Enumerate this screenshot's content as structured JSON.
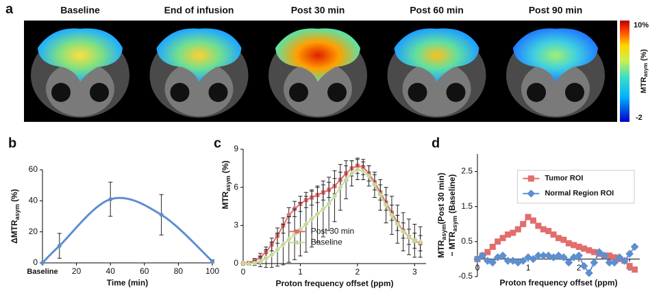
{
  "figure_a": {
    "panel": "a",
    "columns": [
      "Baseline",
      "End of infusion",
      "Post 30 min",
      "Post 60 min",
      "Post 90 min"
    ],
    "colorbar": {
      "max": "10%",
      "min": "-2",
      "title": [
        "MTR",
        "asym",
        " (%)"
      ]
    }
  },
  "chart_data": [
    {
      "type": "line",
      "panel": "b",
      "smooth": true,
      "x": [
        0,
        10,
        40,
        70,
        100
      ],
      "xlim": [
        0,
        100
      ],
      "xticks": [
        {
          "value": 0,
          "label": "Baseline"
        },
        20,
        40,
        60,
        80,
        100
      ],
      "ylim": [
        0,
        60
      ],
      "yticks": [
        0,
        20,
        40,
        60
      ],
      "xlabel": "Time (min)",
      "ylabel": [
        "ΔMTR",
        "asym",
        " (%)"
      ],
      "series": [
        {
          "color": "#5b8fcf",
          "marker": "circle",
          "values": [
            0,
            11,
            41,
            31,
            1
          ],
          "errors": [
            0,
            8,
            11,
            13,
            1
          ]
        }
      ]
    },
    {
      "type": "line",
      "panel": "c",
      "smooth": false,
      "x": [
        0,
        0.1,
        0.2,
        0.3,
        0.4,
        0.5,
        0.6,
        0.7,
        0.8,
        0.9,
        1.0,
        1.1,
        1.2,
        1.3,
        1.4,
        1.5,
        1.6,
        1.7,
        1.8,
        1.9,
        2.0,
        2.1,
        2.2,
        2.3,
        2.4,
        2.5,
        2.6,
        2.7,
        2.8,
        2.9,
        3.0,
        3.1
      ],
      "xlim": [
        0,
        3.2
      ],
      "xticks": [
        0,
        1,
        2,
        3
      ],
      "ylim": [
        0,
        9
      ],
      "yticks": [
        0,
        3,
        6,
        9
      ],
      "xlabel": "Proton frequency offset (ppm)",
      "ylabel": [
        "MTR",
        "asym",
        " (%)"
      ],
      "legend": "lower center",
      "series": [
        {
          "name": "Post 30 min",
          "color": "#e26d6d",
          "marker": "square",
          "values": [
            0,
            0.05,
            0.2,
            0.5,
            0.9,
            1.5,
            2.2,
            3.0,
            3.8,
            4.3,
            4.7,
            5.0,
            5.2,
            5.4,
            5.6,
            5.8,
            6.1,
            6.6,
            7.1,
            7.5,
            7.7,
            7.6,
            7.1,
            6.4,
            5.6,
            4.8,
            4.0,
            3.2,
            2.6,
            2.1,
            1.8,
            1.6
          ],
          "errors": [
            0,
            0.1,
            0.2,
            0.3,
            0.4,
            0.5,
            0.6,
            0.6,
            0.6,
            0.6,
            0.6,
            0.6,
            0.6,
            0.6,
            0.6,
            0.6,
            0.6,
            0.6,
            0.6,
            0.6,
            0.6,
            0.6,
            0.6,
            0.6,
            0.6,
            0.6,
            0.6,
            0.6,
            0.6,
            0.6,
            0.6,
            0.6
          ]
        },
        {
          "name": "Baseline",
          "color": "#c6d99c",
          "marker": "diamond",
          "values": [
            0,
            0,
            0.05,
            0.15,
            0.4,
            0.7,
            1.1,
            1.5,
            1.9,
            2.3,
            2.7,
            3.1,
            3.5,
            3.9,
            4.3,
            4.7,
            5.3,
            6.0,
            6.6,
            7.1,
            7.4,
            7.3,
            6.9,
            6.2,
            5.4,
            4.6,
            3.8,
            3.1,
            2.5,
            2.1,
            1.8,
            1.7
          ],
          "errors": [
            0,
            0.1,
            0.2,
            0.4,
            0.7,
            1.0,
            1.3,
            1.6,
            1.8,
            2.0,
            2.1,
            2.2,
            2.2,
            2.2,
            2.2,
            2.1,
            2.0,
            1.8,
            1.5,
            1.0,
            0.8,
            0.7,
            0.8,
            1.0,
            1.2,
            1.4,
            1.5,
            1.5,
            1.5,
            1.4,
            1.3,
            1.2
          ]
        }
      ]
    },
    {
      "type": "line",
      "panel": "d",
      "smooth": false,
      "x": [
        0,
        0.1,
        0.2,
        0.3,
        0.4,
        0.5,
        0.6,
        0.7,
        0.8,
        0.9,
        1.0,
        1.1,
        1.2,
        1.3,
        1.4,
        1.5,
        1.6,
        1.7,
        1.8,
        1.9,
        2.0,
        2.1,
        2.2,
        2.3,
        2.4,
        2.5,
        2.6,
        2.7,
        2.8,
        2.9,
        3.0,
        3.1
      ],
      "xlim": [
        0,
        3.2
      ],
      "xticks": [
        0,
        1,
        2,
        3
      ],
      "ylim": [
        -0.5,
        3
      ],
      "yticks": [
        -0.5,
        0.5,
        1.5,
        2.5
      ],
      "xlabel": "Proton frequency offset (ppm)",
      "ylabel_lines": [
        [
          "MTR",
          "asym",
          "(Post 30 min)"
        ],
        [
          "− MTR",
          "asym",
          " (Baseline)"
        ]
      ],
      "legend": "upper right",
      "series": [
        {
          "name": "Tumor ROI",
          "color": "#e26d6d",
          "marker": "square",
          "values": [
            0,
            0.1,
            0.2,
            0.35,
            0.5,
            0.6,
            0.7,
            0.75,
            0.85,
            1.0,
            1.2,
            1.1,
            0.95,
            0.85,
            0.8,
            0.7,
            0.6,
            0.55,
            0.45,
            0.4,
            0.35,
            0.3,
            0.25,
            0.2,
            0.15,
            0.1,
            0.1,
            0.05,
            0,
            -0.05,
            -0.2,
            -0.3
          ]
        },
        {
          "name": "Normal Region ROI",
          "color": "#5b8fcf",
          "marker": "diamond",
          "values": [
            0,
            0.1,
            -0.05,
            -0.1,
            0.05,
            0.1,
            -0.05,
            -0.05,
            -0.1,
            -0.05,
            0.05,
            0,
            0.1,
            0.1,
            0.1,
            0.05,
            0.1,
            0.05,
            -0.1,
            0.05,
            0.1,
            -0.2,
            -0.4,
            -0.1,
            0.2,
            0.1,
            -0.1,
            -0.1,
            0.05,
            -0.05,
            0.15,
            0.35
          ]
        }
      ]
    }
  ]
}
